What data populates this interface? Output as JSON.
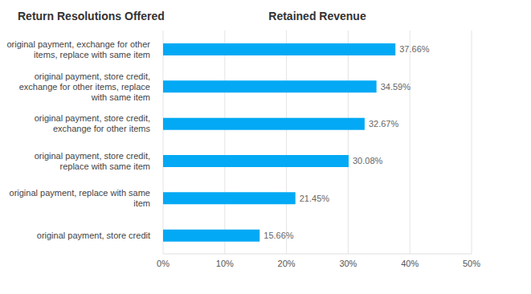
{
  "chart_data": {
    "type": "bar",
    "title": "Retained Revenue",
    "ylabel": "Return Resolutions Offered",
    "orientation": "horizontal",
    "categories": [
      "original payment, exchange for other items, replace with same item",
      "original payment, store credit, exchange for other items, replace with same item",
      "original payment, store credit, exchange for other items",
      "original payment, store credit, replace with same item",
      "original payment, replace with same item",
      "original payment, store credit"
    ],
    "values": [
      37.66,
      34.59,
      32.67,
      30.08,
      21.45,
      15.66
    ],
    "value_labels": [
      "37.66%",
      "34.59%",
      "32.67%",
      "30.08%",
      "21.45%",
      "15.66%"
    ],
    "data_labels": true,
    "color": "#03a9f4",
    "xlim": [
      0,
      50
    ],
    "xticks": [
      {
        "value": 0,
        "label": "0%"
      },
      {
        "value": 10,
        "label": "10%"
      },
      {
        "value": 20,
        "label": "20%"
      },
      {
        "value": 30,
        "label": "30%"
      },
      {
        "value": 40,
        "label": "40%"
      },
      {
        "value": 50,
        "label": "50%"
      }
    ],
    "grid": true
  }
}
